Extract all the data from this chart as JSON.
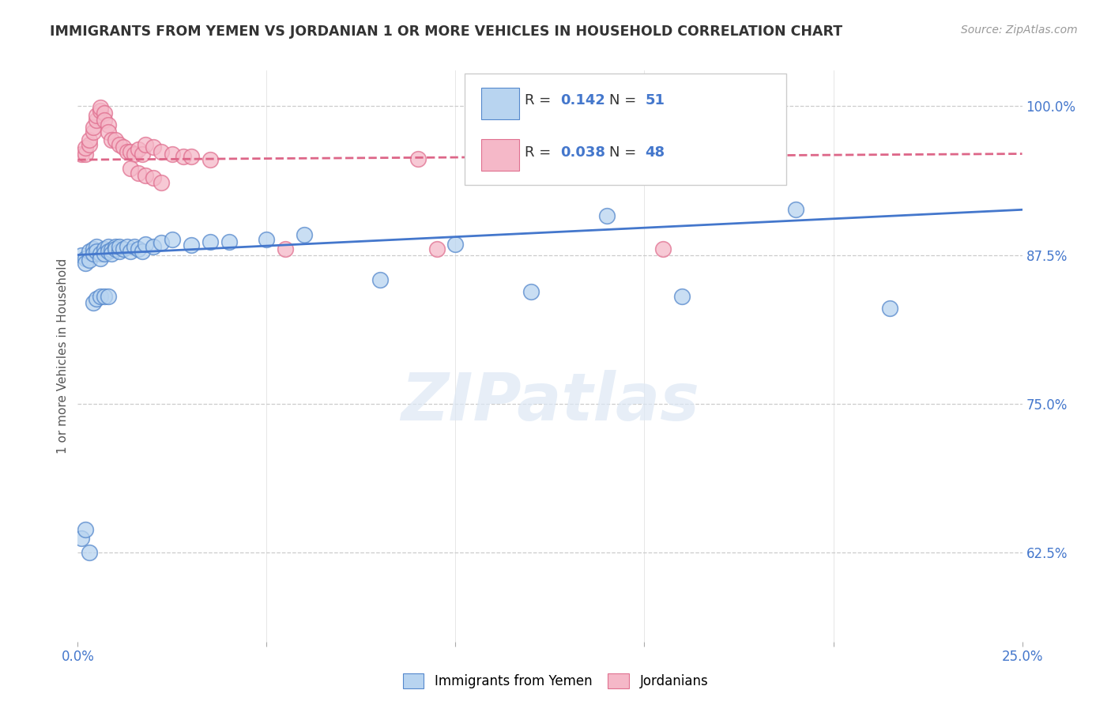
{
  "title": "IMMIGRANTS FROM YEMEN VS JORDANIAN 1 OR MORE VEHICLES IN HOUSEHOLD CORRELATION CHART",
  "source": "Source: ZipAtlas.com",
  "ylabel": "1 or more Vehicles in Household",
  "xlim": [
    0.0,
    0.25
  ],
  "ylim": [
    0.55,
    1.03
  ],
  "yticks": [
    0.625,
    0.75,
    0.875,
    1.0
  ],
  "ytick_labels": [
    "62.5%",
    "75.0%",
    "87.5%",
    "100.0%"
  ],
  "xticks": [
    0.0,
    0.05,
    0.1,
    0.15,
    0.2,
    0.25
  ],
  "xtick_labels": [
    "0.0%",
    "",
    "",
    "",
    "",
    "25.0%"
  ],
  "blue_fill": "#b8d4f0",
  "blue_edge": "#5588cc",
  "pink_fill": "#f5b8c8",
  "pink_edge": "#e07090",
  "blue_line_color": "#4477cc",
  "pink_line_color": "#dd6688",
  "tick_color": "#4477cc",
  "watermark": "ZIPatlas",
  "legend_R_blue": "0.142",
  "legend_N_blue": "51",
  "legend_R_pink": "0.038",
  "legend_N_pink": "48",
  "legend_label_blue": "Immigrants from Yemen",
  "legend_label_pink": "Jordanians",
  "blue_trend_x0": 0.0,
  "blue_trend_y0": 0.875,
  "blue_trend_x1": 0.25,
  "blue_trend_y1": 0.913,
  "pink_trend_x0": 0.0,
  "pink_trend_y0": 0.955,
  "pink_trend_x1": 0.25,
  "pink_trend_y1": 0.96,
  "blue_scatter_x": [
    0.001,
    0.002,
    0.002,
    0.003,
    0.003,
    0.004,
    0.004,
    0.005,
    0.005,
    0.006,
    0.006,
    0.007,
    0.007,
    0.008,
    0.008,
    0.009,
    0.009,
    0.01,
    0.01,
    0.011,
    0.011,
    0.012,
    0.013,
    0.014,
    0.015,
    0.016,
    0.017,
    0.018,
    0.02,
    0.022,
    0.025,
    0.03,
    0.035,
    0.04,
    0.05,
    0.06,
    0.08,
    0.1,
    0.12,
    0.14,
    0.16,
    0.19,
    0.215,
    0.001,
    0.002,
    0.003,
    0.004,
    0.005,
    0.006,
    0.007,
    0.008
  ],
  "blue_scatter_y": [
    0.875,
    0.872,
    0.868,
    0.878,
    0.871,
    0.88,
    0.876,
    0.882,
    0.878,
    0.876,
    0.872,
    0.88,
    0.876,
    0.882,
    0.878,
    0.879,
    0.876,
    0.882,
    0.88,
    0.878,
    0.882,
    0.88,
    0.882,
    0.878,
    0.882,
    0.88,
    0.878,
    0.884,
    0.882,
    0.885,
    0.888,
    0.883,
    0.886,
    0.886,
    0.888,
    0.892,
    0.854,
    0.884,
    0.844,
    0.908,
    0.84,
    0.913,
    0.83,
    0.637,
    0.644,
    0.625,
    0.835,
    0.838,
    0.84,
    0.84,
    0.84
  ],
  "pink_scatter_x": [
    0.001,
    0.002,
    0.002,
    0.003,
    0.003,
    0.004,
    0.004,
    0.005,
    0.005,
    0.006,
    0.006,
    0.007,
    0.007,
    0.008,
    0.008,
    0.009,
    0.01,
    0.011,
    0.012,
    0.013,
    0.014,
    0.015,
    0.016,
    0.017,
    0.018,
    0.02,
    0.022,
    0.025,
    0.028,
    0.014,
    0.016,
    0.018,
    0.02,
    0.022,
    0.03,
    0.035,
    0.055,
    0.09,
    0.095,
    0.11,
    0.12,
    0.13,
    0.14,
    0.15,
    0.155,
    0.16,
    0.17,
    0.18
  ],
  "pink_scatter_y": [
    0.96,
    0.96,
    0.965,
    0.968,
    0.972,
    0.978,
    0.982,
    0.988,
    0.992,
    0.996,
    0.999,
    0.994,
    0.988,
    0.984,
    0.978,
    0.972,
    0.972,
    0.968,
    0.966,
    0.962,
    0.962,
    0.96,
    0.964,
    0.96,
    0.968,
    0.966,
    0.962,
    0.96,
    0.958,
    0.948,
    0.944,
    0.942,
    0.94,
    0.936,
    0.958,
    0.955,
    0.88,
    0.956,
    0.88,
    0.96,
    0.96,
    0.96,
    0.96,
    0.96,
    0.88,
    0.96,
    0.96,
    0.96
  ]
}
